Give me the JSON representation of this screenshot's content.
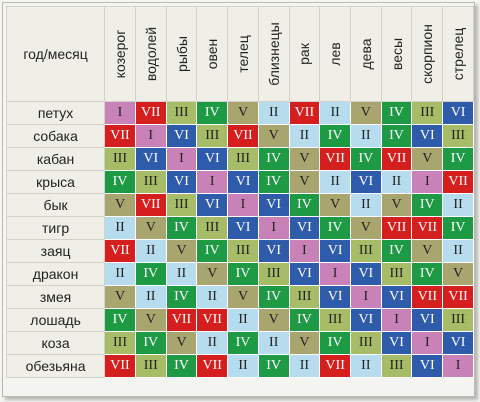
{
  "corner_label": "год/месяц",
  "signs": [
    "козерог",
    "водолей",
    "рыбы",
    "овен",
    "телец",
    "близнецы",
    "рак",
    "лев",
    "дева",
    "весы",
    "скорпион",
    "стрелец"
  ],
  "numeral_colors": {
    "I": {
      "bg": "#c982b8",
      "fg": "#222222"
    },
    "II": {
      "bg": "#b7dcee",
      "fg": "#222222"
    },
    "III": {
      "bg": "#a7bc67",
      "fg": "#222222"
    },
    "IV": {
      "bg": "#1e9a45",
      "fg": "#ffffff"
    },
    "V": {
      "bg": "#a8a56e",
      "fg": "#222222"
    },
    "VI": {
      "bg": "#2f5bab",
      "fg": "#ffffff"
    },
    "VII": {
      "bg": "#d51f1f",
      "fg": "#ffffff"
    }
  },
  "rows": [
    {
      "year": "петух",
      "cells": [
        "I",
        "VII",
        "III",
        "IV",
        "V",
        "II",
        "VII",
        "II",
        "V",
        "IV",
        "III",
        "VI"
      ]
    },
    {
      "year": "собака",
      "cells": [
        "VII",
        "I",
        "VI",
        "III",
        "VII",
        "V",
        "II",
        "IV",
        "II",
        "IV",
        "VI",
        "III"
      ]
    },
    {
      "year": "кабан",
      "cells": [
        "III",
        "VI",
        "I",
        "VI",
        "III",
        "IV",
        "V",
        "VII",
        "IV",
        "VII",
        "V",
        "IV"
      ]
    },
    {
      "year": "крыса",
      "cells": [
        "IV",
        "III",
        "VI",
        "I",
        "VI",
        "IV",
        "V",
        "II",
        "VI",
        "II",
        "I",
        "VII"
      ]
    },
    {
      "year": "бык",
      "cells": [
        "V",
        "VII",
        "III",
        "VI",
        "I",
        "VI",
        "IV",
        "V",
        "II",
        "V",
        "IV",
        "II"
      ]
    },
    {
      "year": "тигр",
      "cells": [
        "II",
        "V",
        "IV",
        "III",
        "VI",
        "I",
        "VI",
        "IV",
        "V",
        "VII",
        "VII",
        "IV"
      ]
    },
    {
      "year": "заяц",
      "cells": [
        "VII",
        "II",
        "V",
        "IV",
        "III",
        "VI",
        "I",
        "VI",
        "III",
        "IV",
        "V",
        "II"
      ]
    },
    {
      "year": "дракон",
      "cells": [
        "II",
        "IV",
        "II",
        "V",
        "IV",
        "III",
        "VI",
        "I",
        "VI",
        "III",
        "IV",
        "V"
      ]
    },
    {
      "year": "змея",
      "cells": [
        "V",
        "II",
        "IV",
        "II",
        "V",
        "IV",
        "III",
        "VI",
        "I",
        "VI",
        "VII",
        "VII"
      ]
    },
    {
      "year": "лошадь",
      "cells": [
        "IV",
        "V",
        "VII",
        "VII",
        "II",
        "V",
        "IV",
        "III",
        "VI",
        "I",
        "VI",
        "III"
      ]
    },
    {
      "year": "коза",
      "cells": [
        "III",
        "IV",
        "V",
        "II",
        "IV",
        "II",
        "V",
        "IV",
        "III",
        "VI",
        "I",
        "VI"
      ]
    },
    {
      "year": "обезьяна",
      "cells": [
        "VII",
        "III",
        "IV",
        "VII",
        "II",
        "IV",
        "II",
        "VII",
        "II",
        "III",
        "VI",
        "I"
      ]
    }
  ]
}
